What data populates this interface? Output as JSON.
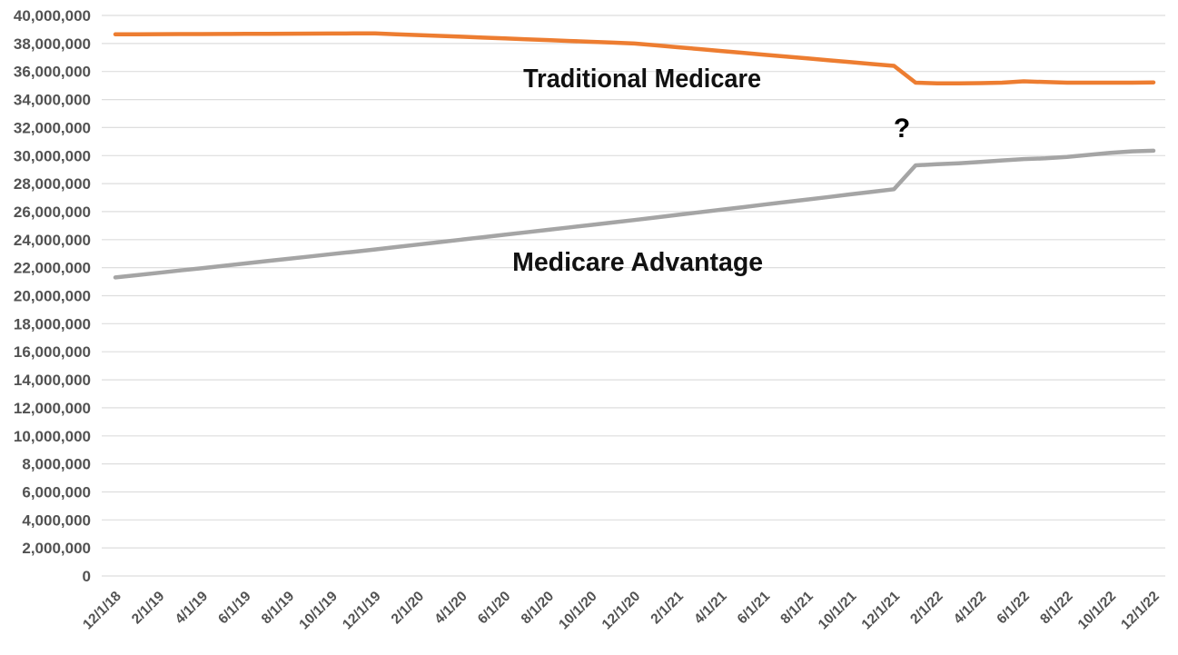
{
  "chart_data": {
    "type": "line",
    "title": "",
    "background": "#FFFFFF",
    "grid": {
      "show": true,
      "color": "#DEDEDE"
    },
    "tick_label_color": "#525252",
    "legend_position": "inline-annotations",
    "x_axis": {
      "months_per_tick": 2,
      "tick_labels": [
        "12/1/18",
        "2/1/19",
        "4/1/19",
        "6/1/19",
        "8/1/19",
        "10/1/19",
        "12/1/19",
        "2/1/20",
        "4/1/20",
        "6/1/20",
        "8/1/20",
        "10/1/20",
        "12/1/20",
        "2/1/21",
        "4/1/21",
        "6/1/21",
        "8/1/21",
        "10/1/21",
        "12/1/21",
        "2/1/22",
        "4/1/22",
        "6/1/22",
        "8/1/22",
        "10/1/22",
        "12/1/22"
      ]
    },
    "y_axis": {
      "min": 0,
      "max": 40000000,
      "step": 2000000,
      "tick_labels": [
        "0",
        "2,000,000",
        "4,000,000",
        "6,000,000",
        "8,000,000",
        "10,000,000",
        "12,000,000",
        "14,000,000",
        "16,000,000",
        "18,000,000",
        "20,000,000",
        "22,000,000",
        "24,000,000",
        "26,000,000",
        "28,000,000",
        "30,000,000",
        "32,000,000",
        "34,000,000",
        "36,000,000",
        "38,000,000",
        "40,000,000"
      ]
    },
    "series": [
      {
        "name": "Traditional Medicare",
        "color": "#ED7D31",
        "values": [
          38650000,
          38656000,
          38662000,
          38668000,
          38673000,
          38679000,
          38685000,
          38691000,
          38697000,
          38702000,
          38708000,
          38714000,
          38720000,
          38660000,
          38600000,
          38540000,
          38480000,
          38420000,
          38360000,
          38300000,
          38240000,
          38180000,
          38120000,
          38060000,
          38000000,
          37867000,
          37733000,
          37600000,
          37467000,
          37333000,
          37200000,
          37067000,
          36933000,
          36800000,
          36667000,
          36533000,
          36400000,
          35200000,
          35150000,
          35150000,
          35170000,
          35200000,
          35300000,
          35250000,
          35200000,
          35200000,
          35200000,
          35200000,
          35220000
        ]
      },
      {
        "name": "Medicare Advantage",
        "color": "#A5A5A5",
        "values": [
          21300000,
          21467000,
          21633000,
          21800000,
          21967000,
          22133000,
          22300000,
          22467000,
          22633000,
          22800000,
          22967000,
          23133000,
          23300000,
          23475000,
          23650000,
          23825000,
          24000000,
          24175000,
          24350000,
          24525000,
          24700000,
          24875000,
          25050000,
          25225000,
          25400000,
          25583000,
          25767000,
          25950000,
          26133000,
          26317000,
          26500000,
          26683000,
          26867000,
          27050000,
          27233000,
          27417000,
          27600000,
          29300000,
          29380000,
          29450000,
          29550000,
          29650000,
          29750000,
          29800000,
          29900000,
          30050000,
          30200000,
          30300000,
          30350000
        ]
      }
    ],
    "annotations": [
      {
        "id": "traditional-medicare-label",
        "text": "Traditional Medicare",
        "month": 24.36,
        "value": 35560000,
        "font_size": 29,
        "text_length": 262,
        "color": "#111111"
      },
      {
        "id": "medicare-advantage-label",
        "text": "Medicare Advantage",
        "month": 24.15,
        "value": 22450000,
        "font_size": 29,
        "text_length": 276,
        "color": "#111111"
      },
      {
        "id": "question-mark-annotation",
        "text": "?",
        "month": 36.37,
        "value": 32000000,
        "font_size": 30,
        "color": "#000000"
      }
    ]
  }
}
